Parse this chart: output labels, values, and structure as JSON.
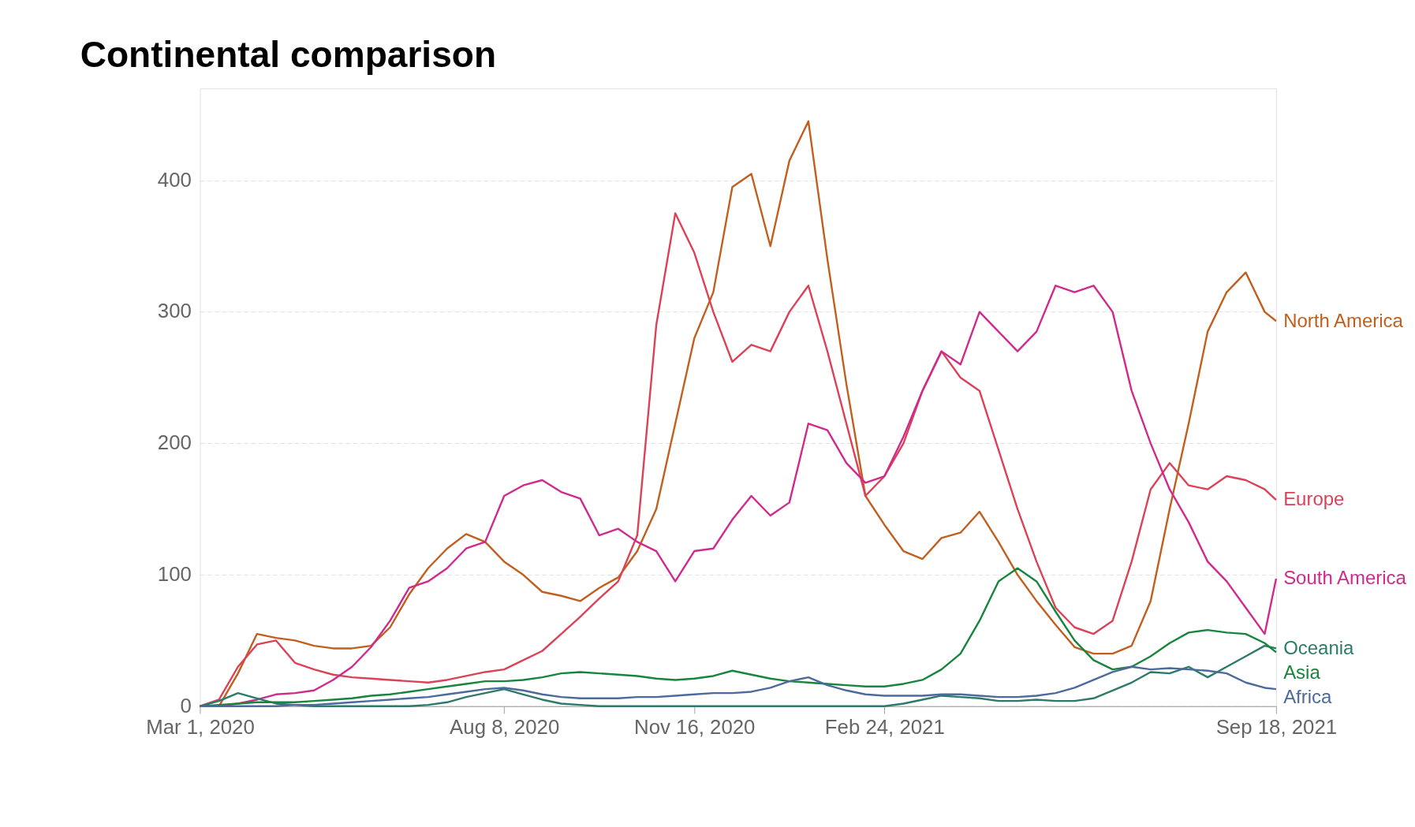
{
  "chart_data": {
    "type": "line",
    "title": "Continental comparison",
    "x": [
      "2020-03-01",
      "2020-03-11",
      "2020-03-21",
      "2020-03-31",
      "2020-04-10",
      "2020-04-20",
      "2020-04-30",
      "2020-05-10",
      "2020-05-20",
      "2020-05-30",
      "2020-06-09",
      "2020-06-19",
      "2020-06-29",
      "2020-07-09",
      "2020-07-19",
      "2020-07-29",
      "2020-08-08",
      "2020-08-18",
      "2020-08-28",
      "2020-09-07",
      "2020-09-17",
      "2020-09-27",
      "2020-10-07",
      "2020-10-17",
      "2020-10-27",
      "2020-11-06",
      "2020-11-16",
      "2020-11-26",
      "2020-12-06",
      "2020-12-16",
      "2020-12-26",
      "2021-01-05",
      "2021-01-15",
      "2021-01-25",
      "2021-02-04",
      "2021-02-14",
      "2021-02-24",
      "2021-03-06",
      "2021-03-16",
      "2021-03-26",
      "2021-04-05",
      "2021-04-15",
      "2021-04-25",
      "2021-05-05",
      "2021-05-15",
      "2021-05-25",
      "2021-06-04",
      "2021-06-14",
      "2021-06-24",
      "2021-07-04",
      "2021-07-14",
      "2021-07-24",
      "2021-08-03",
      "2021-08-13",
      "2021-08-23",
      "2021-09-02",
      "2021-09-12",
      "2021-09-18"
    ],
    "xlim": [
      "2020-03-01",
      "2021-09-18"
    ],
    "xticks": [
      {
        "value": "2020-03-01",
        "label": "Mar 1, 2020"
      },
      {
        "value": "2020-08-08",
        "label": "Aug 8, 2020"
      },
      {
        "value": "2020-11-16",
        "label": "Nov 16, 2020"
      },
      {
        "value": "2021-02-24",
        "label": "Feb 24, 2021"
      },
      {
        "value": "2021-09-18",
        "label": "Sep 18, 2021"
      }
    ],
    "ylim": [
      0,
      470
    ],
    "yticks": [
      0,
      100,
      200,
      300,
      400
    ],
    "grid": "y",
    "series": [
      {
        "name": "North America",
        "color": "#c15f1e",
        "values": [
          0,
          0,
          25,
          55,
          52,
          50,
          46,
          44,
          44,
          46,
          60,
          85,
          105,
          120,
          131,
          125,
          110,
          100,
          87,
          84,
          80,
          90,
          98,
          118,
          150,
          215,
          280,
          315,
          395,
          405,
          350,
          415,
          445,
          340,
          245,
          160,
          138,
          118,
          112,
          128,
          132,
          148,
          125,
          100,
          80,
          62,
          45,
          40,
          40,
          46,
          80,
          150,
          215,
          285,
          315,
          330,
          300,
          293
        ]
      },
      {
        "name": "Europe",
        "color": "#db4258",
        "values": [
          0,
          5,
          30,
          47,
          50,
          33,
          28,
          24,
          22,
          21,
          20,
          19,
          18,
          20,
          23,
          26,
          28,
          35,
          42,
          55,
          68,
          82,
          95,
          130,
          290,
          375,
          345,
          300,
          262,
          275,
          270,
          300,
          320,
          270,
          215,
          160,
          175,
          200,
          240,
          270,
          250,
          240,
          195,
          150,
          110,
          75,
          60,
          55,
          65,
          110,
          165,
          185,
          168,
          165,
          175,
          172,
          165,
          157
        ]
      },
      {
        "name": "South America",
        "color": "#cf2a8c",
        "values": [
          0,
          0,
          2,
          5,
          9,
          10,
          12,
          20,
          30,
          45,
          65,
          90,
          95,
          105,
          120,
          125,
          160,
          168,
          172,
          163,
          158,
          130,
          135,
          125,
          118,
          95,
          118,
          120,
          142,
          160,
          145,
          155,
          215,
          210,
          185,
          170,
          175,
          205,
          240,
          270,
          260,
          300,
          285,
          270,
          285,
          320,
          315,
          320,
          300,
          240,
          200,
          165,
          140,
          110,
          95,
          75,
          55,
          97
        ]
      },
      {
        "name": "Oceania",
        "color": "#2c7a6a",
        "values": [
          0,
          4,
          10,
          6,
          2,
          1,
          0,
          0,
          0,
          0,
          0,
          0,
          1,
          3,
          7,
          10,
          13,
          9,
          5,
          2,
          1,
          0,
          0,
          0,
          0,
          0,
          0,
          0,
          0,
          0,
          0,
          0,
          0,
          0,
          0,
          0,
          0,
          2,
          5,
          8,
          7,
          6,
          4,
          4,
          5,
          4,
          4,
          6,
          12,
          18,
          26,
          25,
          30,
          22,
          30,
          38,
          46,
          44
        ]
      },
      {
        "name": "Asia",
        "color": "#18853e",
        "values": [
          0,
          1,
          2,
          3,
          3,
          3,
          4,
          5,
          6,
          8,
          9,
          11,
          13,
          15,
          17,
          19,
          19,
          20,
          22,
          25,
          26,
          25,
          24,
          23,
          21,
          20,
          21,
          23,
          27,
          24,
          21,
          19,
          18,
          17,
          16,
          15,
          15,
          17,
          20,
          28,
          40,
          65,
          95,
          105,
          95,
          72,
          50,
          35,
          28,
          30,
          38,
          48,
          56,
          58,
          56,
          55,
          48,
          41
        ]
      },
      {
        "name": "Africa",
        "color": "#4c6a9c",
        "values": [
          0,
          0,
          0,
          0,
          0,
          1,
          1,
          2,
          3,
          4,
          5,
          6,
          7,
          9,
          11,
          13,
          14,
          12,
          9,
          7,
          6,
          6,
          6,
          7,
          7,
          8,
          9,
          10,
          10,
          11,
          14,
          19,
          22,
          16,
          12,
          9,
          8,
          8,
          8,
          9,
          9,
          8,
          7,
          7,
          8,
          10,
          14,
          20,
          26,
          30,
          28,
          29,
          28,
          27,
          25,
          18,
          14,
          13
        ]
      }
    ]
  }
}
